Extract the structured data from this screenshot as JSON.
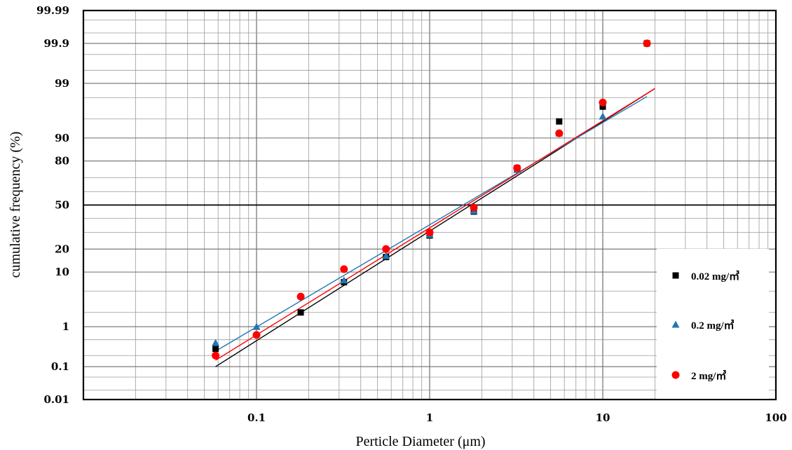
{
  "chart_data": {
    "type": "scatter",
    "title": "",
    "xlabel": "Perticle  Diameter (μm)",
    "ylabel": "cumulative frequency (%)",
    "x_scale": "log",
    "y_scale": "probability",
    "xlim": [
      0.01,
      100
    ],
    "ylim": [
      0.01,
      99.99
    ],
    "x_ticks": [
      0.1,
      1,
      10,
      100
    ],
    "x_tick_labels": [
      "0.1",
      "1",
      "10",
      "100"
    ],
    "y_ticks": [
      0.01,
      0.1,
      1,
      10,
      20,
      50,
      80,
      90,
      99,
      99.9,
      99.99
    ],
    "y_tick_labels": [
      "0.01",
      "0.1",
      "1",
      "10",
      "20",
      "50",
      "80",
      "90",
      "99",
      "99.9",
      "99.99"
    ],
    "grid": true,
    "reference_line_y": 50,
    "legend_position": "bottom-right",
    "series": [
      {
        "name": "0.02 mg/㎥",
        "marker": "square",
        "color": "#000000",
        "x": [
          0.058,
          0.18,
          0.32,
          0.56,
          1.0,
          1.8,
          3.2,
          5.6,
          10.0,
          18.0
        ],
        "y": [
          0.3,
          2.0,
          7.0,
          16.0,
          28.0,
          45.0,
          76.0,
          94.5,
          97.0,
          99.9
        ],
        "fit_line": {
          "x": [
            0.058,
            20.0
          ],
          "y": [
            0.1,
            98.7
          ]
        }
      },
      {
        "name": "0.2 mg/㎥",
        "marker": "triangle",
        "color": "#1f77b4",
        "x": [
          0.058,
          0.1,
          0.32,
          0.56,
          1.0,
          1.8,
          3.2,
          5.6,
          10.0
        ],
        "y": [
          0.42,
          1.0,
          7.5,
          16.5,
          28.5,
          45.5,
          75.0,
          91.5,
          95.5
        ],
        "fit_line": {
          "x": [
            0.058,
            18.0
          ],
          "y": [
            0.26,
            98.1
          ]
        }
      },
      {
        "name": "2 mg/㎥",
        "marker": "circle",
        "color": "#ff0000",
        "x": [
          0.058,
          0.1,
          0.18,
          0.32,
          0.56,
          1.0,
          1.8,
          3.2,
          5.6,
          10.0,
          18.0
        ],
        "y": [
          0.2,
          0.65,
          4.0,
          11.0,
          20.0,
          30.0,
          48.0,
          76.0,
          91.5,
          97.5,
          99.9
        ],
        "fit_line": {
          "x": [
            0.058,
            20.0
          ],
          "y": [
            0.15,
            98.7
          ]
        }
      }
    ]
  }
}
